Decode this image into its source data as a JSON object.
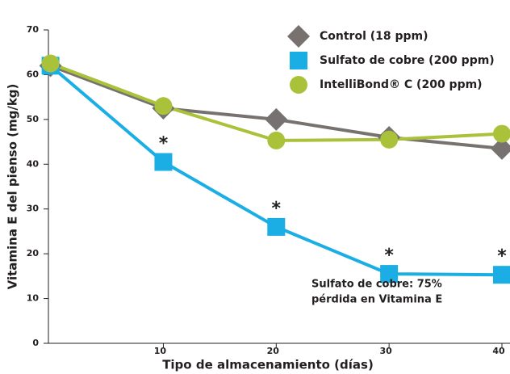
{
  "chart_data": {
    "type": "line",
    "x_label": "Tipo de almacenamiento (días)",
    "y_label": "Vitamina E del pienso (mg/kg)",
    "x": [
      0,
      10,
      20,
      30,
      40
    ],
    "xlim": [
      -0.4,
      40
    ],
    "xticks": [
      10,
      20,
      30,
      40
    ],
    "ylim": [
      0,
      70
    ],
    "yticks": [
      0,
      10,
      20,
      30,
      40,
      50,
      60,
      70
    ],
    "series": [
      {
        "name": "Control (18 ppm)",
        "color": "#77726f",
        "marker": "diamond",
        "values": [
          62,
          52.5,
          50,
          46,
          43.5
        ]
      },
      {
        "name": "Sulfato de cobre (200 ppm)",
        "color": "#1aaee5",
        "marker": "square",
        "values": [
          62,
          40.5,
          26,
          15.5,
          15.3
        ],
        "significance": [
          null,
          "*",
          "*",
          "*",
          "*"
        ]
      },
      {
        "name": "IntelliBond® C (200 ppm)",
        "color": "#a9c23a",
        "marker": "circle",
        "values": [
          62.5,
          53,
          45.3,
          45.5,
          46.8
        ]
      }
    ],
    "annotation": [
      "Sulfato de cobre: 75%",
      "pérdida en Vitamina E"
    ]
  }
}
